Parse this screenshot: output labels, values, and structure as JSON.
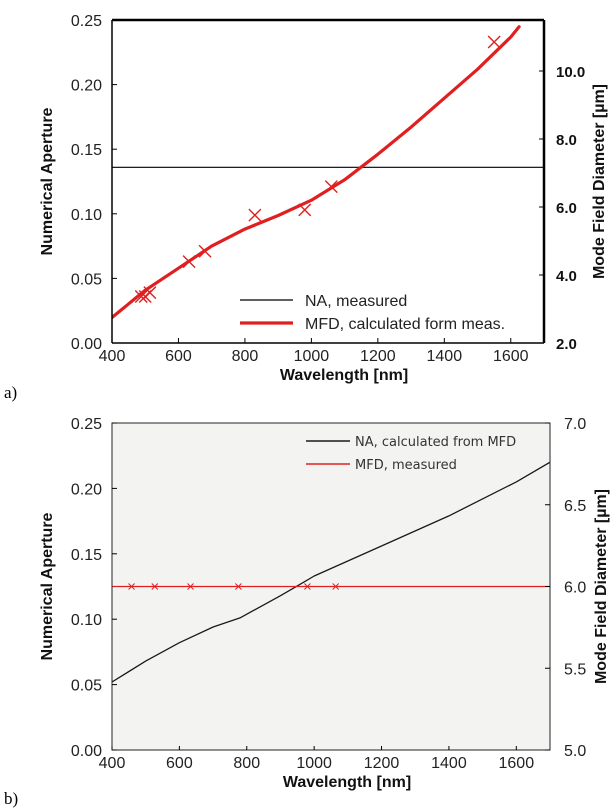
{
  "panels": {
    "a": "a)",
    "b": "b)"
  },
  "chart_data": [
    {
      "id": "a",
      "type": "line",
      "xlabel": "Wavelength [nm]",
      "ylabel": "Numerical Aperture",
      "y2label": "Mode Field Diameter [µm]",
      "xlim": [
        400,
        1700
      ],
      "ylim": [
        0,
        0.25
      ],
      "y2lim": [
        2.0,
        11.5
      ],
      "xticks": [
        "400",
        "600",
        "800",
        "1000",
        "1200",
        "1400",
        "1600"
      ],
      "yticks": [
        "0.00",
        "0.05",
        "0.10",
        "0.15",
        "0.20",
        "0.25"
      ],
      "y2ticks": [
        "2.0",
        "4.0",
        "6.0",
        "8.0",
        "10.0"
      ],
      "grid": false,
      "legend_position": "bottom-right",
      "series": [
        {
          "name": "NA, measured",
          "axis": "left",
          "color": "#000000",
          "style": "line",
          "x": [
            400,
            1700
          ],
          "y": [
            0.136,
            0.136
          ]
        },
        {
          "name": "MFD, calculated form meas.",
          "axis": "right",
          "color": "#e02020",
          "style": "thick-line",
          "x": [
            400,
            500,
            600,
            700,
            800,
            900,
            1000,
            1100,
            1200,
            1300,
            1400,
            1500,
            1600,
            1625
          ],
          "y": [
            2.75,
            3.55,
            4.2,
            4.85,
            5.35,
            5.75,
            6.2,
            6.8,
            7.55,
            8.35,
            9.2,
            10.05,
            11.0,
            11.3
          ]
        },
        {
          "name": "",
          "axis": "left",
          "color": "#e02020",
          "style": "x-marker",
          "x": [
            488,
            500,
            514,
            632,
            680,
            830,
            980,
            1060,
            1550
          ],
          "y": [
            0.036,
            0.036,
            0.039,
            0.063,
            0.071,
            0.099,
            0.103,
            0.121,
            0.233
          ]
        }
      ]
    },
    {
      "id": "b",
      "type": "line",
      "xlabel": "Wavelength [nm]",
      "ylabel": "Numerical Aperture",
      "y2label": "Mode Field Diameter [µm]",
      "xlim": [
        400,
        1700
      ],
      "ylim": [
        0,
        0.25
      ],
      "y2lim": [
        5.0,
        7.0
      ],
      "xticks": [
        "400",
        "600",
        "800",
        "1000",
        "1200",
        "1400",
        "1600"
      ],
      "yticks": [
        "0.00",
        "0.05",
        "0.10",
        "0.15",
        "0.20",
        "0.25"
      ],
      "y2ticks": [
        "5.0",
        "5.5",
        "6.0",
        "6.5",
        "7.0"
      ],
      "grid": false,
      "legend_position": "top-right",
      "series": [
        {
          "name": "NA, calculated from MFD",
          "axis": "left",
          "color": "#1a1a1a",
          "style": "line",
          "x": [
            400,
            500,
            600,
            700,
            780,
            900,
            960,
            1000,
            1200,
            1400,
            1600,
            1700
          ],
          "y": [
            0.052,
            0.068,
            0.082,
            0.094,
            0.101,
            0.118,
            0.127,
            0.133,
            0.156,
            0.179,
            0.205,
            0.22
          ]
        },
        {
          "name": "MFD, measured",
          "axis": "right",
          "color": "#e02020",
          "style": "line",
          "x": [
            400,
            1700
          ],
          "y": [
            6.0,
            6.0
          ]
        },
        {
          "name": "",
          "axis": "right",
          "color": "#e02020",
          "style": "small-x",
          "x": [
            458,
            527,
            633,
            775,
            980,
            1064
          ],
          "y": [
            6.0,
            6.0,
            6.0,
            6.0,
            6.0,
            6.0
          ]
        }
      ]
    }
  ]
}
